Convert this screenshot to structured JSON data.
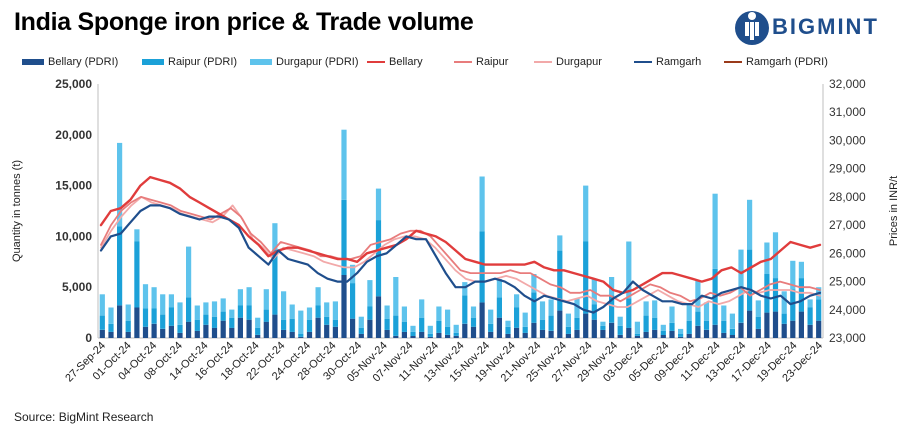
{
  "title": "India Sponge iron price & Trade volume",
  "brand": "BIGMINT",
  "source": "Source: BigMint Research",
  "chart_data": {
    "type": "bar+line",
    "y_left_label": "Quantity in tonnes (t)",
    "y_right_label": "Prices in INR/t",
    "y_left_ticks": [
      "0",
      "5,000",
      "10,000",
      "15,000",
      "20,000",
      "25,000"
    ],
    "y_right_ticks": [
      "23,000",
      "24,000",
      "25,000",
      "26,000",
      "27,000",
      "28,000",
      "29,000",
      "30,000",
      "31,000",
      "32,000"
    ],
    "ylim_left": [
      0,
      25000
    ],
    "ylim_right": [
      23000,
      32000
    ],
    "x_ticks": [
      "27-Sep-24",
      "01-Oct-24",
      "04-Oct-24",
      "08-Oct-24",
      "14-Oct-24",
      "16-Oct-24",
      "18-Oct-24",
      "22-Oct-24",
      "24-Oct-24",
      "28-Oct-24",
      "30-Oct-24",
      "05-Nov-24",
      "07-Nov-24",
      "11-Nov-24",
      "13-Nov-24",
      "15-Nov-24",
      "19-Nov-24",
      "21-Nov-24",
      "25-Nov-24",
      "27-Nov-24",
      "29-Nov-24",
      "03-Dec-24",
      "05-Dec-24",
      "09-Dec-24",
      "11-Dec-24",
      "13-Dec-24",
      "17-Dec-24",
      "19-Dec-24",
      "23-Dec-24"
    ],
    "legend": [
      {
        "name": "Bellary (PDRI)",
        "kind": "bar",
        "color": "#1f4e8c"
      },
      {
        "name": "Raipur (PDRI)",
        "kind": "bar",
        "color": "#1ba1d8"
      },
      {
        "name": "Durgapur (PDRI)",
        "kind": "bar",
        "color": "#5ec3ec"
      },
      {
        "name": "Bellary",
        "kind": "line",
        "color": "#e03c3c"
      },
      {
        "name": "Raipur",
        "kind": "line",
        "color": "#e87c7c"
      },
      {
        "name": "Durgapur",
        "kind": "line",
        "color": "#f2a9a9"
      },
      {
        "name": "Ramgarh",
        "kind": "line",
        "color": "#1f4e8c"
      },
      {
        "name": "Ramgarh (PDRI)",
        "kind": "line",
        "color": "#9a3a1a"
      }
    ],
    "bars": {
      "bellary": [
        800,
        600,
        3200,
        600,
        3000,
        1100,
        1400,
        900,
        1200,
        500,
        1600,
        700,
        1300,
        1000,
        1700,
        1000,
        2000,
        1800,
        300,
        1600,
        2300,
        800,
        600,
        100,
        600,
        2000,
        1300,
        1100,
        6200,
        1900,
        400,
        1800,
        4100,
        800,
        200,
        600,
        200,
        600,
        100,
        500,
        300,
        200,
        1400,
        1100,
        3500,
        600,
        2000,
        400,
        1000,
        500,
        1500,
        800,
        700,
        2700,
        400,
        800,
        2400,
        1800,
        800,
        1500,
        300,
        1000,
        200,
        600,
        800,
        300,
        700,
        100,
        400,
        1200,
        800,
        1300,
        500,
        300,
        1500,
        2700,
        900,
        2500,
        2600,
        1400,
        1700,
        2600,
        1300,
        1700
      ],
      "raipur": [
        1400,
        800,
        7800,
        1100,
        6500,
        1800,
        1500,
        1400,
        1800,
        800,
        2400,
        1100,
        1000,
        1100,
        900,
        1000,
        1200,
        1400,
        700,
        1200,
        6400,
        1000,
        1300,
        300,
        1200,
        1200,
        800,
        700,
        7400,
        3500,
        600,
        1300,
        7500,
        1100,
        2000,
        1000,
        400,
        1400,
        300,
        1200,
        800,
        300,
        2800,
        900,
        7000,
        800,
        2000,
        700,
        2000,
        600,
        3000,
        1000,
        1500,
        5900,
        700,
        1200,
        7100,
        1500,
        400,
        2700,
        900,
        2900,
        200,
        1600,
        1200,
        400,
        800,
        300,
        1300,
        1400,
        900,
        5500,
        1200,
        600,
        2800,
        6000,
        1200,
        3800,
        3300,
        1000,
        3100,
        3300,
        1700,
        2100
      ],
      "durgapur": [
        2100,
        1600,
        8200,
        1600,
        1200,
        2400,
        2100,
        2000,
        1300,
        2200,
        5000,
        1400,
        1200,
        1500,
        1300,
        800,
        1600,
        1800,
        1000,
        2000,
        2600,
        2800,
        1400,
        2300,
        1200,
        1800,
        1400,
        1800,
        6900,
        1800,
        1100,
        2600,
        3100,
        1300,
        3800,
        1500,
        600,
        1800,
        800,
        1400,
        1700,
        800,
        1300,
        1100,
        5400,
        1400,
        1800,
        600,
        1300,
        1400,
        1800,
        1800,
        1600,
        1500,
        1300,
        1900,
        5500,
        2500,
        400,
        1800,
        900,
        5600,
        1200,
        1400,
        1700,
        600,
        1600,
        500,
        1700,
        3100,
        1800,
        7400,
        1500,
        1500,
        4400,
        4900,
        1600,
        3100,
        4500,
        2200,
        2800,
        1600,
        800,
        1200
      ]
    },
    "lines": {
      "bellary": [
        27000,
        27500,
        27600,
        27900,
        28400,
        28700,
        28600,
        28500,
        28300,
        28000,
        27800,
        27600,
        27400,
        27200,
        27000,
        26600,
        26300,
        25900,
        26100,
        26200,
        26200,
        26100,
        26000,
        25900,
        25800,
        25800,
        25700,
        26000,
        26100,
        26200,
        26300,
        26500,
        26800,
        26700,
        26600,
        26400,
        26100,
        25800,
        25700,
        25600,
        25600,
        25600,
        25600,
        25600,
        25700,
        25500,
        25400,
        25400,
        25300,
        25200,
        25100,
        25000,
        24700,
        24600,
        24700,
        24900,
        25100,
        25300,
        25300,
        25200,
        25100,
        25000,
        25100,
        25400,
        25500,
        25300,
        25500,
        25700,
        25800,
        26100,
        26400,
        26300,
        26200,
        26300
      ],
      "raipur": [
        26300,
        27000,
        27500,
        27800,
        28000,
        27900,
        27800,
        27700,
        27500,
        27400,
        27300,
        27200,
        27400,
        27600,
        27300,
        26700,
        26400,
        26000,
        26400,
        26300,
        26200,
        26100,
        25900,
        25900,
        25800,
        25800,
        25900,
        26300,
        26400,
        26500,
        26700,
        26800,
        26800,
        26600,
        26200,
        25800,
        25400,
        25300,
        25300,
        25300,
        25300,
        25400,
        25300,
        25300,
        25100,
        24900,
        24800,
        24600,
        24600,
        24700,
        24500,
        24500,
        24300,
        24500,
        24700,
        24900,
        24800,
        24600,
        24500,
        24300,
        24400,
        24600,
        24500,
        24600,
        24800,
        24500,
        24700,
        24900,
        25000,
        24900,
        24800,
        24800,
        24700
      ],
      "durgapur": [
        26200,
        26800,
        27300,
        27700,
        28000,
        27800,
        27700,
        27600,
        27400,
        27300,
        27200,
        27100,
        27300,
        27700,
        27200,
        26500,
        26200,
        25800,
        26200,
        26100,
        26000,
        25900,
        25700,
        25600,
        25500,
        25500,
        25700,
        26000,
        26300,
        26500,
        26600,
        26600,
        26500,
        26200,
        25800,
        25400,
        25100,
        25000,
        25000,
        25100,
        25200,
        25100,
        24900,
        24700,
        24500,
        24400,
        24300,
        24400,
        24500,
        24300,
        24200,
        24100,
        24100,
        24300,
        24500,
        24700,
        24500,
        24300,
        24200,
        24100,
        24300,
        24200,
        24300,
        24500,
        24700,
        24600,
        24700,
        24700,
        24700,
        24600,
        24600,
        24500
      ],
      "ramgarh": [
        26100,
        26600,
        26700,
        27100,
        27500,
        27700,
        27700,
        27600,
        27400,
        27300,
        27200,
        27300,
        27300,
        27200,
        26900,
        26200,
        25900,
        25600,
        26100,
        25800,
        25700,
        25600,
        25300,
        25100,
        25000,
        25000,
        25300,
        25700,
        25900,
        26000,
        26300,
        26600,
        26500,
        26500,
        25900,
        25300,
        24800,
        24800,
        25000,
        25000,
        25100,
        25000,
        24800,
        24500,
        24300,
        24500,
        24400,
        24300,
        24200,
        24000,
        23900,
        24100,
        24400,
        24600,
        25000,
        24700,
        24500,
        24300,
        24300,
        24200,
        24200,
        24500,
        24400,
        24600,
        24700,
        24800,
        24700,
        24500,
        24400,
        24500,
        24200,
        24300,
        24500,
        24600
      ]
    }
  }
}
